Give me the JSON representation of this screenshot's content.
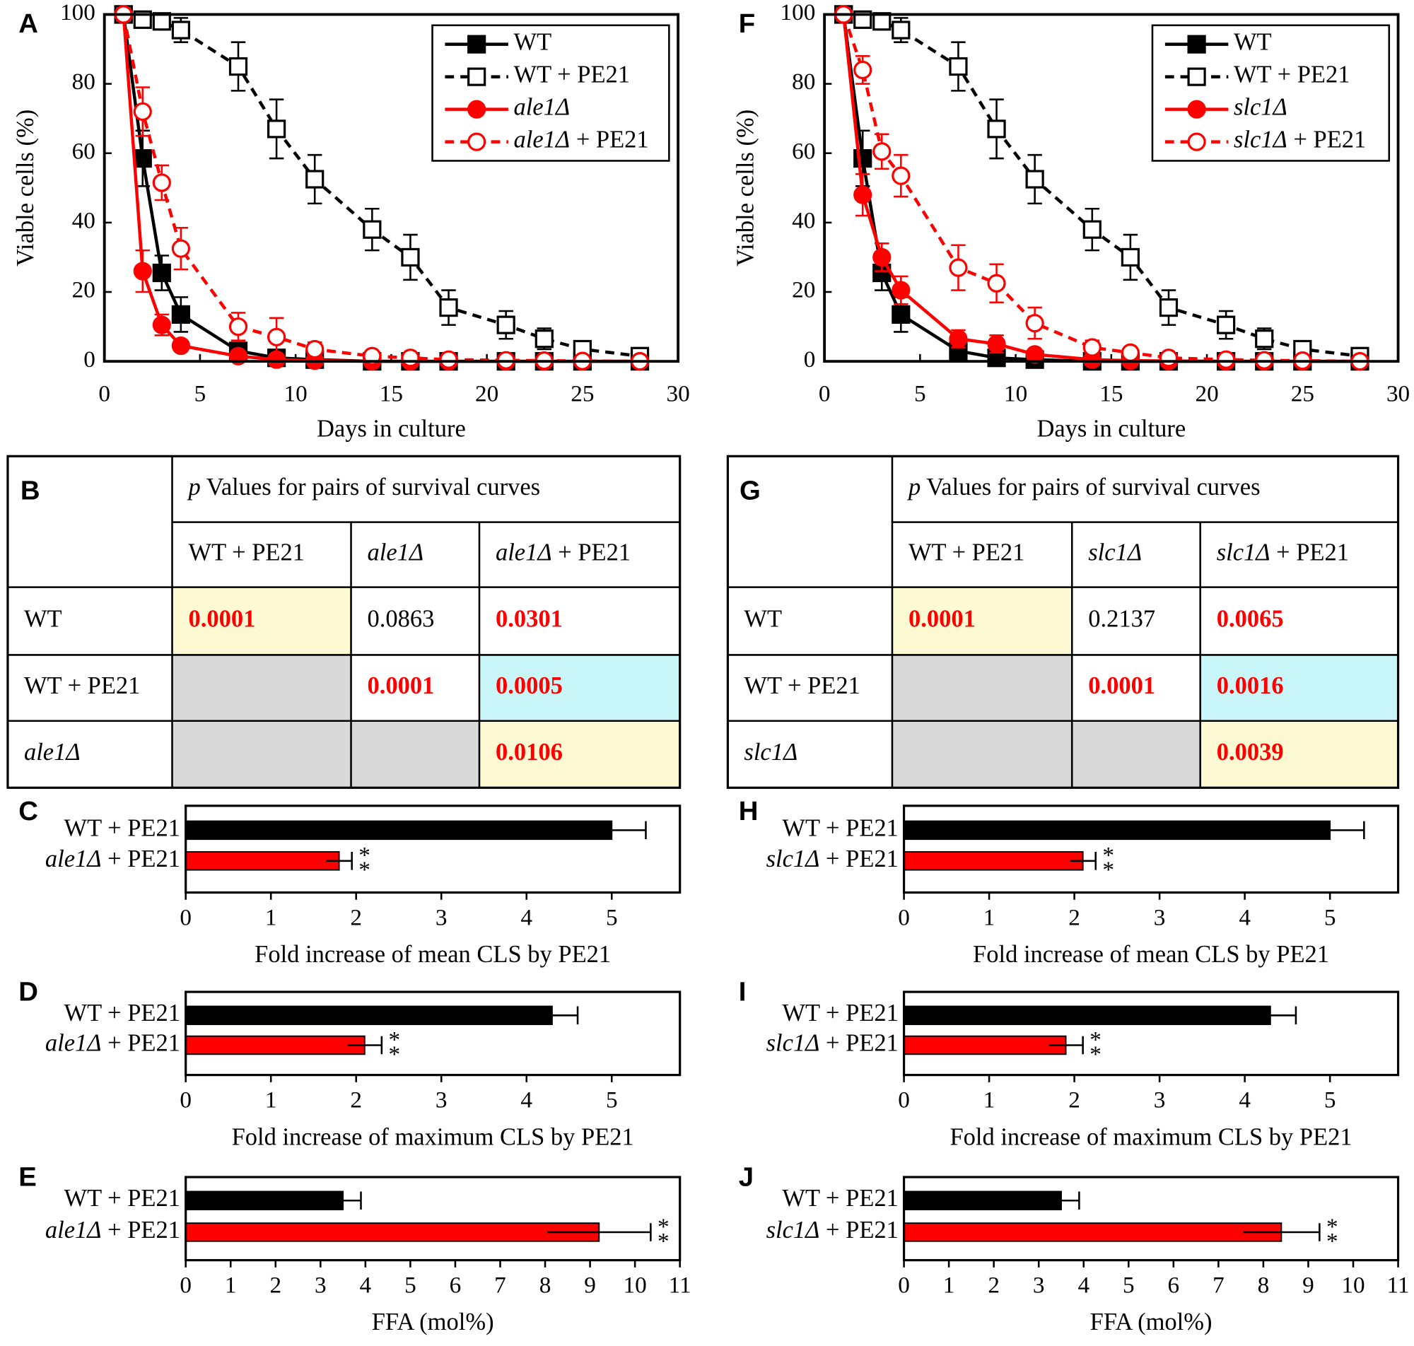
{
  "chart_data": [
    {
      "type": "line",
      "panel": "A",
      "xlabel": "Days in culture",
      "ylabel": "Viable cells (%)",
      "x": [
        1,
        2,
        3,
        4,
        7,
        9,
        11,
        14,
        16,
        18,
        21,
        23,
        25,
        28
      ],
      "xlim": [
        0,
        30
      ],
      "xticks": [
        0,
        5,
        10,
        15,
        20,
        25,
        30
      ],
      "ylim": [
        0,
        100
      ],
      "yticks": [
        0,
        20,
        40,
        60,
        80,
        100
      ],
      "legend": "upper right",
      "series": [
        {
          "name": "WT",
          "color": "#000000",
          "dashed": false,
          "marker": "square",
          "filled": true,
          "values": [
            100,
            58.5,
            25.5,
            13.5,
            3,
            1,
            0.5,
            0,
            0,
            0,
            0,
            0,
            0,
            0
          ],
          "errors": [
            0,
            8,
            5,
            5,
            2,
            1,
            0.5,
            0,
            0,
            0,
            0,
            0,
            0,
            0
          ]
        },
        {
          "name": "WT + PE21",
          "color": "#000000",
          "dashed": true,
          "marker": "square",
          "filled": false,
          "values": [
            100,
            98.5,
            98,
            95.5,
            85,
            67,
            52.5,
            38,
            30,
            15.5,
            10.5,
            6.5,
            3.5,
            1.5
          ],
          "errors": [
            0,
            1,
            1.5,
            3.5,
            7,
            8.5,
            7,
            6,
            6.5,
            5,
            4,
            3,
            1,
            1
          ]
        },
        {
          "name": "ale1Δ",
          "color": "#ff0000",
          "dashed": false,
          "marker": "circle",
          "filled": true,
          "values": [
            100,
            26,
            10.5,
            4.5,
            1.5,
            0.5,
            0.2,
            0,
            0,
            0,
            0,
            0,
            0,
            0
          ],
          "errors": [
            0,
            6,
            3,
            1.5,
            1,
            0.5,
            0.2,
            0,
            0,
            0,
            0,
            0,
            0,
            0
          ]
        },
        {
          "name": "ale1Δ + PE21",
          "color": "#ff0000",
          "dashed": true,
          "marker": "circle",
          "filled": false,
          "values": [
            100,
            72,
            51.5,
            32.5,
            10,
            7,
            3.5,
            1.5,
            1,
            0.5,
            0.3,
            0.2,
            0.1,
            0
          ],
          "errors": [
            0,
            7,
            5,
            6,
            4,
            5.5,
            2,
            1,
            1,
            0.5,
            0.5,
            0.5,
            0,
            0
          ]
        }
      ]
    },
    {
      "type": "table",
      "panel": "B",
      "header": "p Values for pairs of survival curves",
      "columns": [
        "WT + PE21",
        "ale1Δ",
        "ale1Δ + PE21"
      ],
      "rows": [
        {
          "label": "WT",
          "cells": [
            "0.0001",
            "0.0863",
            "0.0301"
          ]
        },
        {
          "label": "WT + PE21",
          "cells": [
            null,
            "0.0001",
            "0.0005"
          ]
        },
        {
          "label": "ale1Δ",
          "cells": [
            null,
            null,
            "0.0106"
          ]
        }
      ],
      "cell_fill": [
        [
          "#fdf9d2",
          "#ffffff",
          "#ffffff"
        ],
        [
          "#d9d9d9",
          "#ffffff",
          "#c9f6f8"
        ],
        [
          "#d9d9d9",
          "#d9d9d9",
          "#fdf9d2"
        ]
      ],
      "cell_text_color": [
        [
          "#ff0000",
          "#000000",
          "#ff0000"
        ],
        [
          "#000000",
          "#ff0000",
          "#ff0000"
        ],
        [
          "#000000",
          "#000000",
          "#ff0000"
        ]
      ],
      "cell_bold": [
        [
          true,
          false,
          true
        ],
        [
          false,
          true,
          true
        ],
        [
          false,
          false,
          true
        ]
      ]
    },
    {
      "type": "hbar",
      "panel": "C",
      "xlabel": "Fold increase of mean CLS by PE21",
      "categories": [
        "WT + PE21",
        "ale1Δ + PE21"
      ],
      "values": [
        5,
        1.8
      ],
      "errors": [
        0.4,
        0.15
      ],
      "colors": [
        "#000000",
        "#ff0000"
      ],
      "annotations": [
        null,
        "**"
      ],
      "xlim": [
        0,
        5.8
      ],
      "xticks": [
        0,
        1,
        2,
        3,
        4,
        5
      ]
    },
    {
      "type": "hbar",
      "panel": "D",
      "xlabel": "Fold increase of maximum CLS by PE21",
      "categories": [
        "WT + PE21",
        "ale1Δ + PE21"
      ],
      "values": [
        4.3,
        2.1
      ],
      "errors": [
        0.3,
        0.2
      ],
      "colors": [
        "#000000",
        "#ff0000"
      ],
      "annotations": [
        null,
        "**"
      ],
      "xlim": [
        0,
        5.8
      ],
      "xticks": [
        0,
        1,
        2,
        3,
        4,
        5
      ]
    },
    {
      "type": "hbar",
      "panel": "E",
      "xlabel": "FFA (mol%)",
      "categories": [
        "WT + PE21",
        "ale1Δ + PE21"
      ],
      "values": [
        3.5,
        9.2
      ],
      "errors": [
        0.4,
        1.15
      ],
      "colors": [
        "#000000",
        "#ff0000"
      ],
      "annotations": [
        null,
        "**"
      ],
      "xlim": [
        0,
        11
      ],
      "xticks": [
        0,
        1,
        2,
        3,
        4,
        5,
        6,
        7,
        8,
        9,
        10,
        11
      ]
    },
    {
      "type": "line",
      "panel": "F",
      "xlabel": "Days in culture",
      "ylabel": "Viable cells (%)",
      "x": [
        1,
        2,
        3,
        4,
        7,
        9,
        11,
        14,
        16,
        18,
        21,
        23,
        25,
        28
      ],
      "xlim": [
        0,
        30
      ],
      "xticks": [
        0,
        5,
        10,
        15,
        20,
        25,
        30
      ],
      "ylim": [
        0,
        100
      ],
      "yticks": [
        0,
        20,
        40,
        60,
        80,
        100
      ],
      "legend": "upper right",
      "series": [
        {
          "name": "WT",
          "color": "#000000",
          "dashed": false,
          "marker": "square",
          "filled": true,
          "values": [
            100,
            58.5,
            25.5,
            13.5,
            3,
            1,
            0.5,
            0,
            0,
            0,
            0,
            0,
            0,
            0
          ],
          "errors": [
            0,
            8,
            5,
            5,
            2,
            1,
            0.5,
            0,
            0,
            0,
            0,
            0,
            0,
            0
          ]
        },
        {
          "name": "WT + PE21",
          "color": "#000000",
          "dashed": true,
          "marker": "square",
          "filled": false,
          "values": [
            100,
            98.5,
            98,
            95.5,
            85,
            67,
            52.5,
            38,
            30,
            15.5,
            10.5,
            6.5,
            3.5,
            1.5
          ],
          "errors": [
            0,
            1,
            1.5,
            3.5,
            7,
            8.5,
            7,
            6,
            6.5,
            5,
            4,
            3,
            1,
            1
          ]
        },
        {
          "name": "slc1Δ",
          "color": "#ff0000",
          "dashed": false,
          "marker": "circle",
          "filled": true,
          "values": [
            100,
            48,
            30,
            20.5,
            6.5,
            5,
            2,
            0.5,
            0.2,
            0.1,
            0,
            0,
            0,
            0
          ],
          "errors": [
            0,
            6,
            4,
            4,
            2.5,
            2.5,
            1,
            0.5,
            0,
            0,
            0,
            0,
            0,
            0
          ]
        },
        {
          "name": "slc1Δ + PE21",
          "color": "#ff0000",
          "dashed": true,
          "marker": "circle",
          "filled": false,
          "values": [
            100,
            84,
            60.5,
            53.5,
            27,
            22.5,
            11,
            4,
            2.5,
            1,
            0.5,
            0.3,
            0.2,
            0
          ],
          "errors": [
            0,
            4,
            5,
            6,
            6.5,
            5.5,
            4.5,
            2,
            1,
            0.5,
            0.5,
            0.5,
            0,
            0
          ]
        }
      ]
    },
    {
      "type": "table",
      "panel": "G",
      "header": "p Values for pairs of survival curves",
      "columns": [
        "WT + PE21",
        "slc1Δ",
        "slc1Δ + PE21"
      ],
      "rows": [
        {
          "label": "WT",
          "cells": [
            "0.0001",
            "0.2137",
            "0.0065"
          ]
        },
        {
          "label": "WT + PE21",
          "cells": [
            null,
            "0.0001",
            "0.0016"
          ]
        },
        {
          "label": "slc1Δ",
          "cells": [
            null,
            null,
            "0.0039"
          ]
        }
      ],
      "cell_fill": [
        [
          "#fdf9d2",
          "#ffffff",
          "#ffffff"
        ],
        [
          "#d9d9d9",
          "#ffffff",
          "#c9f6f8"
        ],
        [
          "#d9d9d9",
          "#d9d9d9",
          "#fdf9d2"
        ]
      ],
      "cell_text_color": [
        [
          "#ff0000",
          "#000000",
          "#ff0000"
        ],
        [
          "#000000",
          "#ff0000",
          "#ff0000"
        ],
        [
          "#000000",
          "#000000",
          "#ff0000"
        ]
      ],
      "cell_bold": [
        [
          true,
          false,
          true
        ],
        [
          false,
          true,
          true
        ],
        [
          false,
          false,
          true
        ]
      ]
    },
    {
      "type": "hbar",
      "panel": "H",
      "xlabel": "Fold increase of mean CLS by PE21",
      "categories": [
        "WT + PE21",
        "slc1Δ + PE21"
      ],
      "values": [
        5,
        2.1
      ],
      "errors": [
        0.4,
        0.15
      ],
      "colors": [
        "#000000",
        "#ff0000"
      ],
      "annotations": [
        null,
        "**"
      ],
      "xlim": [
        0,
        5.8
      ],
      "xticks": [
        0,
        1,
        2,
        3,
        4,
        5
      ]
    },
    {
      "type": "hbar",
      "panel": "I",
      "xlabel": "Fold increase of maximum CLS by PE21",
      "categories": [
        "WT + PE21",
        "slc1Δ + PE21"
      ],
      "values": [
        4.3,
        1.9
      ],
      "errors": [
        0.3,
        0.2
      ],
      "colors": [
        "#000000",
        "#ff0000"
      ],
      "annotations": [
        null,
        "**"
      ],
      "xlim": [
        0,
        5.8
      ],
      "xticks": [
        0,
        1,
        2,
        3,
        4,
        5
      ]
    },
    {
      "type": "hbar",
      "panel": "J",
      "xlabel": "FFA (mol%)",
      "categories": [
        "WT + PE21",
        "slc1Δ + PE21"
      ],
      "values": [
        3.5,
        8.4
      ],
      "errors": [
        0.4,
        0.85
      ],
      "colors": [
        "#000000",
        "#ff0000"
      ],
      "annotations": [
        null,
        "**"
      ],
      "xlim": [
        0,
        11
      ],
      "xticks": [
        0,
        1,
        2,
        3,
        4,
        5,
        6,
        7,
        8,
        9,
        10,
        11
      ]
    }
  ]
}
